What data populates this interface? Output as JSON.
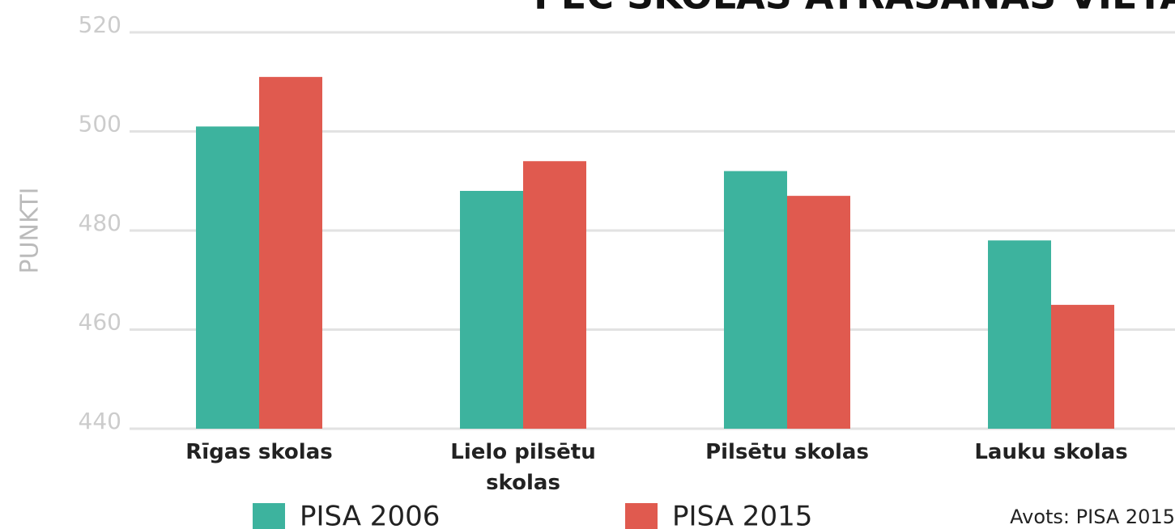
{
  "chart_data": {
    "type": "bar",
    "title": "PĒC SKOLAS ATRAŠANĀS VIETAS",
    "y_label": "PUNKTI",
    "source": "Avots: PISA 2015",
    "categories": [
      "Rīgas skolas",
      "Lielo pilsētu skolas",
      "Pilsētu skolas",
      "Lauku skolas"
    ],
    "series": [
      {
        "name": "PISA 2006",
        "color": "#3db39e",
        "values": [
          501,
          488,
          492,
          478
        ]
      },
      {
        "name": "PISA 2015",
        "color": "#e05a4f",
        "values": [
          511,
          494,
          487,
          465
        ]
      }
    ],
    "ylim": [
      440,
      520
    ],
    "yticks": [
      440,
      460,
      480,
      500,
      520
    ],
    "grid": true
  }
}
